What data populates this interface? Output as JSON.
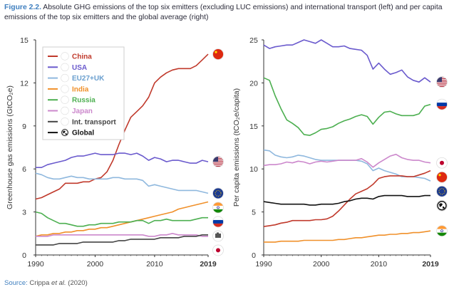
{
  "caption": {
    "label": "Figure 2.2.",
    "text": " Absolute GHG emissions of the top six emitters (excluding LUC emissions) and international transport (left) and per capita emissions of the top six emitters and the global average (right)"
  },
  "source": {
    "label": "Source:",
    "author": "Crippa",
    "etal": "et al.",
    "year": "(2020)"
  },
  "colors": {
    "China": "#c0392b",
    "USA": "#6a5acd",
    "EU27+UK": "#8fb8de",
    "India": "#f0902a",
    "Russia": "#4caf50",
    "Japan": "#cc88cc",
    "Int. transport": "#444444",
    "Global": "#111111"
  },
  "chart_data": [
    {
      "type": "line",
      "ylabel": "Greenhouse gas emissions (GtCO₂e)",
      "ylim": [
        0,
        15
      ],
      "yticks": [
        0,
        3,
        6,
        9,
        12,
        15
      ],
      "xlim": [
        1990,
        2019
      ],
      "xticks": [
        {
          "v": 1990,
          "t": "1990"
        },
        {
          "v": 2000,
          "t": "2000"
        },
        {
          "v": 2010,
          "t": "2010"
        },
        {
          "v": 2019,
          "t": "2019"
        }
      ],
      "grid": false,
      "legend": "top-left",
      "legend_labels": [
        "China",
        "USA",
        "EU27+UK",
        "India",
        "Russia",
        "Japan",
        "Int. transport",
        "Global"
      ],
      "x": [
        1990,
        1991,
        1992,
        1993,
        1994,
        1995,
        1996,
        1997,
        1998,
        1999,
        2000,
        2001,
        2002,
        2003,
        2004,
        2005,
        2006,
        2007,
        2008,
        2009,
        2010,
        2011,
        2012,
        2013,
        2014,
        2015,
        2016,
        2017,
        2018,
        2019
      ],
      "series": [
        {
          "name": "China",
          "values": [
            3.9,
            4.0,
            4.2,
            4.4,
            4.6,
            5.0,
            5.0,
            5.0,
            5.1,
            5.1,
            5.3,
            5.4,
            5.8,
            6.6,
            7.7,
            8.7,
            9.6,
            10.0,
            10.4,
            11.0,
            12.0,
            12.4,
            12.7,
            12.9,
            13.0,
            13.0,
            13.0,
            13.2,
            13.6,
            14.0
          ]
        },
        {
          "name": "USA",
          "values": [
            6.1,
            6.1,
            6.3,
            6.4,
            6.5,
            6.6,
            6.8,
            6.9,
            6.9,
            7.0,
            7.1,
            7.0,
            7.0,
            7.0,
            7.1,
            7.1,
            7.0,
            7.1,
            6.9,
            6.6,
            6.8,
            6.7,
            6.5,
            6.6,
            6.6,
            6.5,
            6.4,
            6.4,
            6.6,
            6.5
          ]
        },
        {
          "name": "EU27+UK",
          "values": [
            5.7,
            5.6,
            5.4,
            5.3,
            5.3,
            5.4,
            5.5,
            5.4,
            5.4,
            5.3,
            5.3,
            5.3,
            5.3,
            5.4,
            5.4,
            5.3,
            5.3,
            5.3,
            5.2,
            4.8,
            4.9,
            4.8,
            4.7,
            4.6,
            4.5,
            4.5,
            4.5,
            4.5,
            4.4,
            4.3
          ]
        },
        {
          "name": "India",
          "values": [
            1.3,
            1.4,
            1.4,
            1.5,
            1.5,
            1.6,
            1.6,
            1.7,
            1.7,
            1.8,
            1.8,
            1.9,
            1.9,
            2.0,
            2.1,
            2.2,
            2.3,
            2.4,
            2.5,
            2.6,
            2.7,
            2.8,
            2.9,
            3.0,
            3.2,
            3.3,
            3.4,
            3.5,
            3.6,
            3.7
          ]
        },
        {
          "name": "Russia",
          "values": [
            3.0,
            2.9,
            2.6,
            2.4,
            2.2,
            2.2,
            2.1,
            2.0,
            2.0,
            2.1,
            2.1,
            2.2,
            2.2,
            2.2,
            2.3,
            2.3,
            2.3,
            2.4,
            2.4,
            2.2,
            2.4,
            2.4,
            2.5,
            2.4,
            2.4,
            2.4,
            2.4,
            2.5,
            2.6,
            2.6
          ]
        },
        {
          "name": "Japan",
          "values": [
            1.3,
            1.3,
            1.3,
            1.4,
            1.4,
            1.4,
            1.4,
            1.4,
            1.4,
            1.4,
            1.4,
            1.4,
            1.4,
            1.4,
            1.4,
            1.4,
            1.4,
            1.4,
            1.4,
            1.3,
            1.3,
            1.4,
            1.4,
            1.5,
            1.4,
            1.4,
            1.4,
            1.4,
            1.3,
            1.3
          ]
        },
        {
          "name": "Int. transport",
          "values": [
            0.7,
            0.7,
            0.7,
            0.7,
            0.8,
            0.8,
            0.8,
            0.8,
            0.9,
            0.9,
            0.9,
            0.9,
            0.9,
            0.9,
            1.0,
            1.0,
            1.1,
            1.1,
            1.1,
            1.1,
            1.1,
            1.2,
            1.2,
            1.2,
            1.2,
            1.3,
            1.3,
            1.3,
            1.4,
            1.4
          ]
        }
      ],
      "end_markers": [
        "China",
        "USA",
        "India",
        "EU27+UK",
        "Russia",
        "Int. transport",
        "Japan"
      ]
    },
    {
      "type": "line",
      "ylabel": "Per capita emissions (tCO₂e/capita)",
      "ylim": [
        0,
        25
      ],
      "yticks": [
        0,
        5,
        10,
        15,
        20,
        25
      ],
      "xlim": [
        1990,
        2019
      ],
      "xticks": [
        {
          "v": 1990,
          "t": "1990"
        },
        {
          "v": 2000,
          "t": "2000"
        },
        {
          "v": 2010,
          "t": "2010"
        },
        {
          "v": 2019,
          "t": "2019"
        }
      ],
      "grid": false,
      "x": [
        1990,
        1991,
        1992,
        1993,
        1994,
        1995,
        1996,
        1997,
        1998,
        1999,
        2000,
        2001,
        2002,
        2003,
        2004,
        2005,
        2006,
        2007,
        2008,
        2009,
        2010,
        2011,
        2012,
        2013,
        2014,
        2015,
        2016,
        2017,
        2018,
        2019
      ],
      "series": [
        {
          "name": "USA",
          "values": [
            24.4,
            24.0,
            24.2,
            24.3,
            24.4,
            24.4,
            24.7,
            25.0,
            24.8,
            24.6,
            25.0,
            24.6,
            24.2,
            24.2,
            24.3,
            24.0,
            23.9,
            23.8,
            23.2,
            21.6,
            22.3,
            21.6,
            21.0,
            21.2,
            21.5,
            20.7,
            20.3,
            20.1,
            20.6,
            20.1
          ]
        },
        {
          "name": "Russia",
          "values": [
            20.6,
            20.3,
            18.5,
            17.0,
            15.7,
            15.3,
            14.8,
            14.0,
            13.9,
            14.2,
            14.6,
            14.7,
            14.9,
            15.3,
            15.6,
            15.8,
            16.1,
            16.3,
            16.1,
            15.2,
            16.0,
            16.6,
            16.7,
            16.4,
            16.2,
            16.2,
            16.2,
            16.4,
            17.3,
            17.5
          ]
        },
        {
          "name": "EU27+UK",
          "values": [
            12.2,
            12.1,
            11.6,
            11.4,
            11.3,
            11.4,
            11.6,
            11.5,
            11.3,
            11.1,
            11.0,
            11.0,
            11.0,
            11.0,
            11.0,
            11.0,
            11.0,
            10.9,
            10.6,
            9.8,
            10.1,
            9.8,
            9.6,
            9.4,
            9.1,
            9.1,
            9.1,
            9.0,
            8.9,
            8.6
          ]
        },
        {
          "name": "Japan",
          "values": [
            10.4,
            10.5,
            10.5,
            10.6,
            10.8,
            10.7,
            10.9,
            10.8,
            10.6,
            10.8,
            10.9,
            10.8,
            10.9,
            11.0,
            11.0,
            11.0,
            11.0,
            11.2,
            10.8,
            10.2,
            10.7,
            11.1,
            11.5,
            11.7,
            11.3,
            11.1,
            11.0,
            11.0,
            10.8,
            10.7
          ]
        },
        {
          "name": "China",
          "values": [
            3.3,
            3.4,
            3.5,
            3.7,
            3.8,
            4.0,
            4.0,
            4.0,
            4.0,
            4.1,
            4.1,
            4.2,
            4.5,
            5.1,
            5.8,
            6.5,
            7.1,
            7.4,
            7.7,
            8.2,
            8.9,
            9.1,
            9.2,
            9.2,
            9.2,
            9.1,
            9.1,
            9.3,
            9.5,
            9.8
          ]
        },
        {
          "name": "Global",
          "values": [
            6.2,
            6.1,
            6.0,
            5.9,
            5.9,
            5.9,
            5.9,
            5.9,
            5.8,
            5.8,
            5.9,
            5.9,
            5.9,
            6.0,
            6.2,
            6.3,
            6.5,
            6.6,
            6.6,
            6.5,
            6.8,
            6.9,
            6.9,
            6.9,
            6.9,
            6.8,
            6.8,
            6.8,
            6.9,
            6.9
          ]
        },
        {
          "name": "India",
          "values": [
            1.5,
            1.5,
            1.5,
            1.6,
            1.6,
            1.6,
            1.6,
            1.7,
            1.7,
            1.7,
            1.7,
            1.7,
            1.7,
            1.8,
            1.8,
            1.9,
            2.0,
            2.0,
            2.1,
            2.2,
            2.3,
            2.3,
            2.4,
            2.4,
            2.5,
            2.5,
            2.6,
            2.6,
            2.7,
            2.8
          ]
        }
      ],
      "end_markers": [
        "USA",
        "Russia",
        "Japan",
        "China",
        "EU27+UK",
        "Global",
        "India"
      ]
    }
  ]
}
